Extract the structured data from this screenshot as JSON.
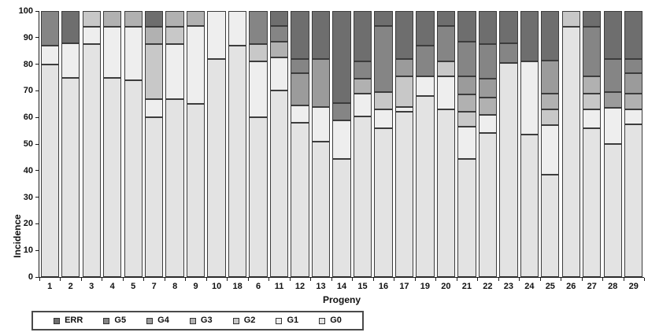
{
  "chart_data": {
    "type": "bar",
    "variant": "stacked-100",
    "title": "",
    "xlabel": "Progeny",
    "ylabel": "Incidence",
    "ylim": [
      0,
      100
    ],
    "yticks": [
      0,
      10,
      20,
      30,
      40,
      50,
      60,
      70,
      80,
      90,
      100
    ],
    "grid": false,
    "legend_position": "bottom-left",
    "legend_order": [
      "ERR",
      "G5",
      "G4",
      "G3",
      "G2",
      "G1",
      "G0"
    ],
    "categories": [
      "1",
      "2",
      "3",
      "4",
      "5",
      "7",
      "8",
      "9",
      "10",
      "18",
      "6",
      "11",
      "12",
      "13",
      "14",
      "15",
      "16",
      "17",
      "19",
      "20",
      "21",
      "22",
      "23",
      "24",
      "25",
      "26",
      "27",
      "28",
      "29"
    ],
    "series": [
      {
        "name": "G0",
        "color": "#e3e3e3",
        "values": [
          80,
          75,
          87.5,
          75,
          74,
          60,
          67,
          65,
          82,
          87,
          60,
          70,
          58,
          51,
          44.5,
          60.5,
          56,
          62,
          68,
          63,
          44.5,
          54,
          80.5,
          53.5,
          38.5,
          94,
          56,
          50,
          57.5
        ]
      },
      {
        "name": "G1",
        "color": "#eeeeee",
        "values": [
          7,
          13,
          6.5,
          19,
          20,
          7,
          20.5,
          29.5,
          18,
          13,
          21,
          12.5,
          6.5,
          13,
          14.5,
          8.5,
          7,
          2,
          7.5,
          12.5,
          12,
          7,
          0,
          27.5,
          18.5,
          0,
          7,
          13.5,
          5.5
        ]
      },
      {
        "name": "G2",
        "color": "#c8c8c8",
        "values": [
          0,
          0,
          6,
          0,
          0,
          20.5,
          6.5,
          0,
          0,
          0,
          6.5,
          0,
          0,
          0,
          0,
          0,
          6.5,
          11.5,
          0,
          5.5,
          5.5,
          0,
          0,
          0,
          6,
          6,
          6,
          0,
          0
        ]
      },
      {
        "name": "G3",
        "color": "#b1b1b1",
        "values": [
          0,
          0,
          0,
          6,
          6,
          6.5,
          6,
          5.5,
          0,
          0,
          0,
          6,
          0,
          0,
          0,
          5.5,
          0,
          0,
          0,
          0,
          6.5,
          6.5,
          0,
          0,
          6,
          0,
          6.5,
          0,
          6
        ]
      },
      {
        "name": "G4",
        "color": "#9b9b9b",
        "values": [
          0,
          0,
          0,
          0,
          0,
          0,
          0,
          0,
          0,
          0,
          0,
          0,
          12,
          18,
          0,
          0,
          0,
          6.5,
          0,
          0,
          7,
          7,
          0,
          0,
          12.5,
          0,
          0,
          6,
          7.5
        ]
      },
      {
        "name": "G5",
        "color": "#858585",
        "values": [
          13,
          0,
          0,
          0,
          0,
          0,
          0,
          0,
          0,
          0,
          12.5,
          6,
          5.5,
          0,
          6.5,
          6.5,
          25,
          0,
          11.5,
          13.5,
          13,
          13,
          7.5,
          0,
          0,
          0,
          18.5,
          12.5,
          5.5
        ]
      },
      {
        "name": "ERR",
        "color": "#6e6e6e",
        "values": [
          0,
          12,
          0,
          0,
          0,
          6,
          0,
          0,
          0,
          0,
          0,
          5.5,
          18,
          18,
          34.5,
          19,
          5.5,
          18,
          13,
          5.5,
          11.5,
          12.5,
          12,
          19,
          18.5,
          0,
          6,
          18,
          18
        ]
      }
    ]
  }
}
